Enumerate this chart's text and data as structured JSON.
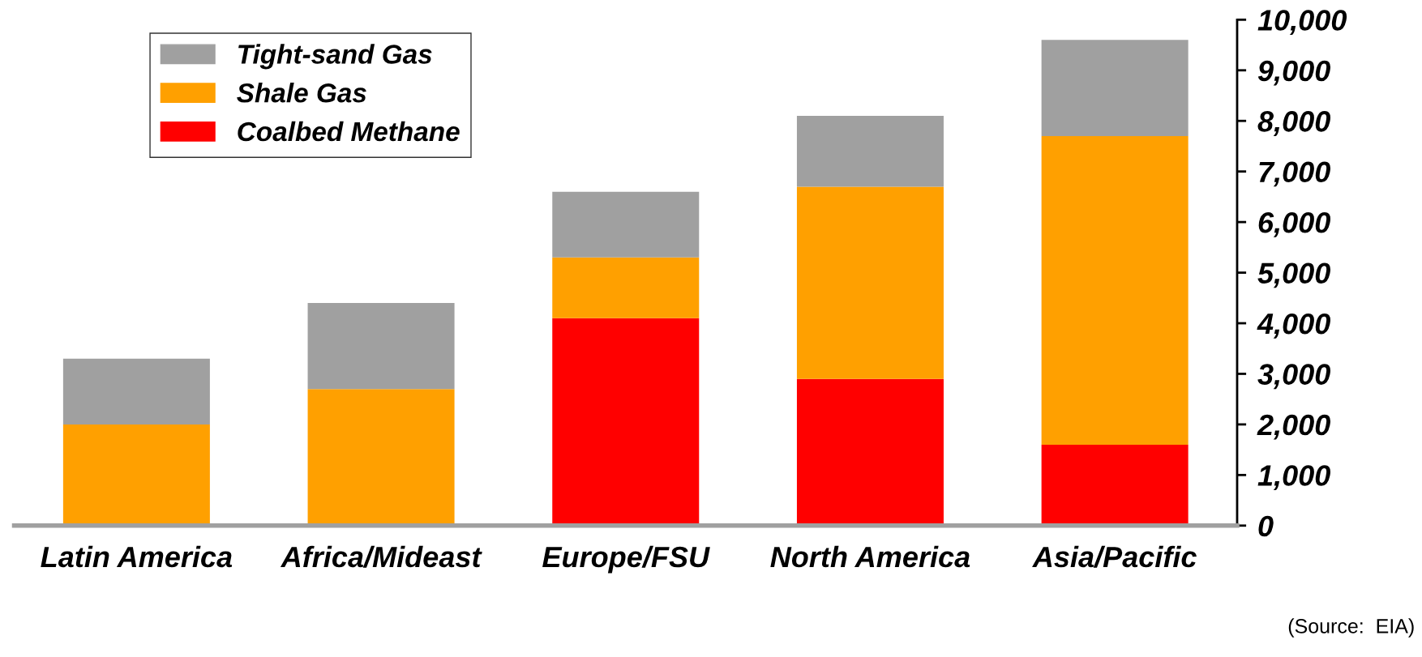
{
  "chart_data": {
    "type": "bar",
    "stacked": true,
    "categories": [
      "Latin America",
      "Africa/Mideast",
      "Europe/FSU",
      "North America",
      "Asia/Pacific"
    ],
    "series": [
      {
        "name": "Coalbed Methane",
        "color": "#ff0000",
        "values": [
          0,
          0,
          4100,
          2900,
          1600
        ]
      },
      {
        "name": "Shale Gas",
        "color": "#ffa000",
        "values": [
          2000,
          2700,
          1200,
          3800,
          6100
        ]
      },
      {
        "name": "Tight-sand Gas",
        "color": "#a0a0a0",
        "values": [
          1300,
          1700,
          1300,
          1400,
          1900
        ]
      }
    ],
    "ylim": [
      0,
      10000
    ],
    "yticks": [
      {
        "value": 0,
        "label": "0"
      },
      {
        "value": 1000,
        "label": "1,000"
      },
      {
        "value": 2000,
        "label": "2,000"
      },
      {
        "value": 3000,
        "label": "3,000"
      },
      {
        "value": 4000,
        "label": "4,000"
      },
      {
        "value": 5000,
        "label": "5,000"
      },
      {
        "value": 6000,
        "label": "6,000"
      },
      {
        "value": 7000,
        "label": "7,000"
      },
      {
        "value": 8000,
        "label": "8,000"
      },
      {
        "value": 9000,
        "label": "9,000"
      },
      {
        "value": 10000,
        "label": "10,000"
      }
    ],
    "legend": "top left",
    "grid": false,
    "annotations": [
      "(Source:  EIA)"
    ]
  }
}
